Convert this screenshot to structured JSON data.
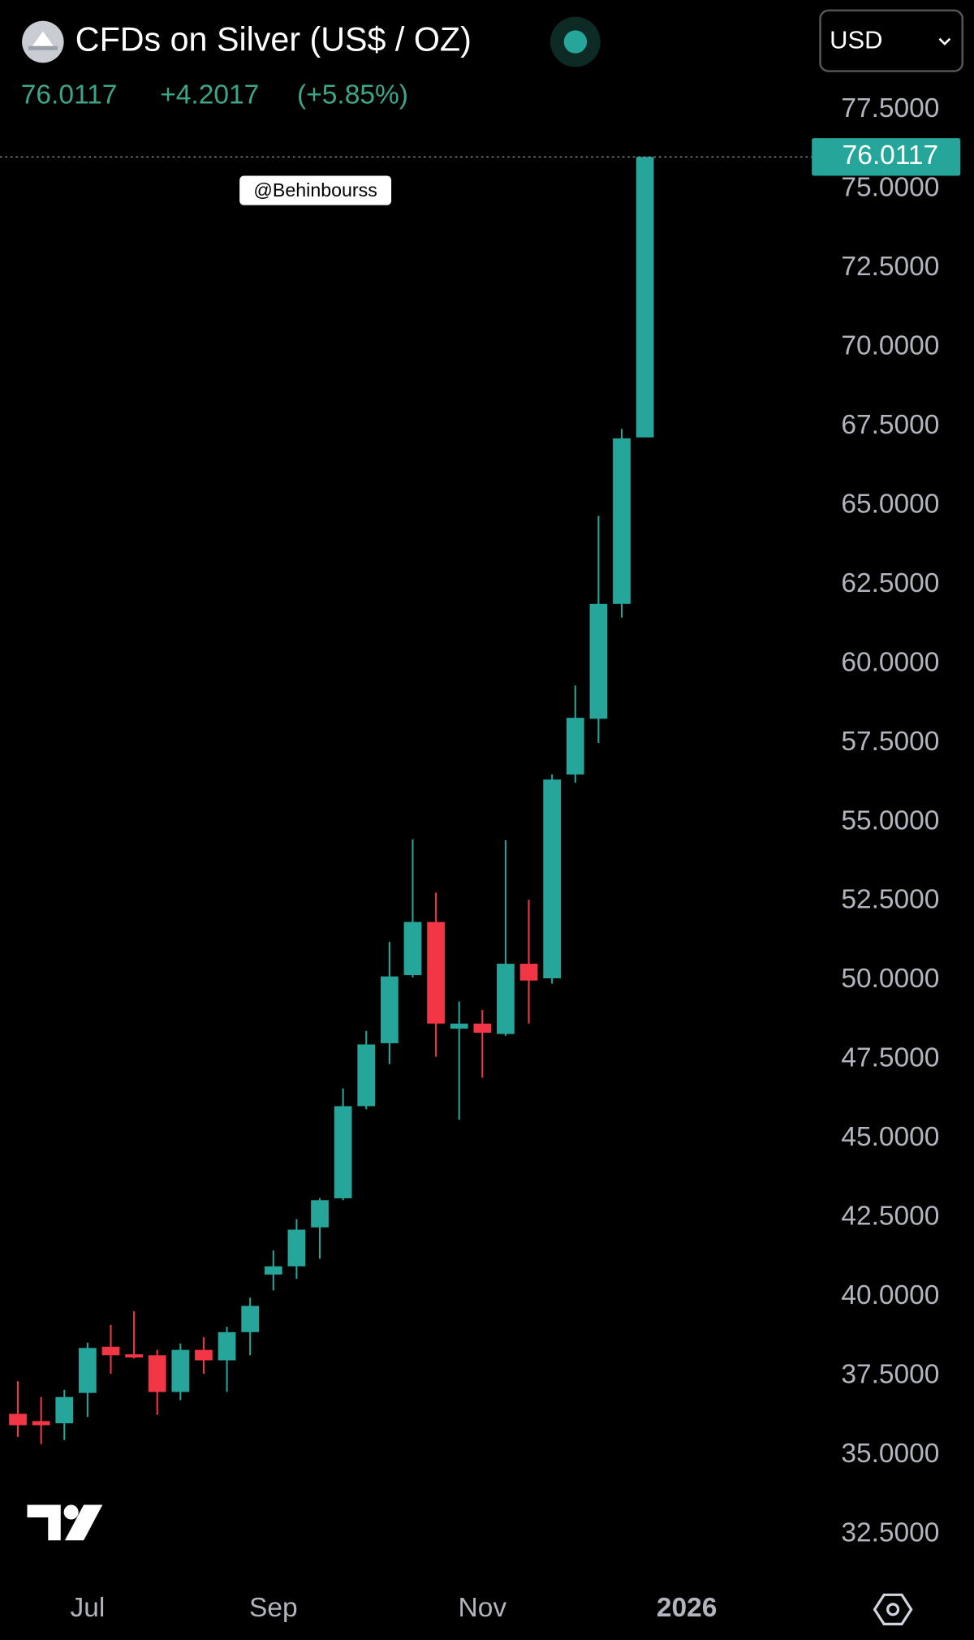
{
  "header": {
    "title": "CFDs on Silver (US$ / OZ)",
    "change": "+4.2017",
    "change_pct": "(+5.85%)",
    "currency": "USD",
    "watermark": "@Behinbourss"
  },
  "chart_data": {
    "type": "candlestick",
    "up_color": "#26a69a",
    "down_color": "#f23645",
    "series": [
      {
        "name": "Silver",
        "open": [
          36.3,
          36.07,
          36.0,
          36.96,
          38.42,
          38.18,
          38.15,
          36.99,
          38.32,
          37.99,
          38.88,
          40.7,
          40.96,
          42.19,
          43.11,
          46.02,
          48.01,
          50.16,
          51.84,
          48.47,
          48.63,
          48.3,
          50.52,
          50.06,
          56.5,
          58.26,
          61.89,
          67.15
        ],
        "high": [
          37.33,
          36.83,
          37.06,
          38.55,
          39.11,
          39.54,
          38.32,
          38.52,
          38.72,
          39.05,
          39.97,
          41.46,
          42.45,
          43.11,
          46.58,
          48.4,
          51.21,
          54.45,
          52.77,
          49.33,
          49.06,
          54.42,
          52.54,
          56.5,
          59.31,
          64.67,
          67.42,
          76.0117
        ],
        "low": [
          35.57,
          35.34,
          35.47,
          36.2,
          37.56,
          38.05,
          36.27,
          36.73,
          37.56,
          36.99,
          38.15,
          40.2,
          40.57,
          41.2,
          43.05,
          45.92,
          47.35,
          50.09,
          47.58,
          45.59,
          46.92,
          48.24,
          48.63,
          49.89,
          56.24,
          57.5,
          61.46,
          67.15
        ],
        "close": [
          35.94,
          35.94,
          36.83,
          38.38,
          38.15,
          38.08,
          36.99,
          38.32,
          37.99,
          38.88,
          39.71,
          40.96,
          42.12,
          43.05,
          46.02,
          47.97,
          50.12,
          51.84,
          48.63,
          48.63,
          48.34,
          50.52,
          49.99,
          56.34,
          58.29,
          61.89,
          67.12,
          76.0117
        ]
      }
    ],
    "xlim": [
      -0.77,
      34.14
    ],
    "xticks": [
      {
        "value": 3,
        "label": "Jul"
      },
      {
        "value": 11,
        "label": "Sep"
      },
      {
        "value": 20,
        "label": "Nov"
      },
      {
        "value": 28.8,
        "label": "2026"
      }
    ],
    "ylim": [
      31.21,
      80.97
    ],
    "yticks": [
      {
        "value": 32.5,
        "label": "32.5000"
      },
      {
        "value": 35,
        "label": "35.0000"
      },
      {
        "value": 37.5,
        "label": "37.5000"
      },
      {
        "value": 40,
        "label": "40.0000"
      },
      {
        "value": 42.5,
        "label": "42.5000"
      },
      {
        "value": 45,
        "label": "45.0000"
      },
      {
        "value": 47.5,
        "label": "47.5000"
      },
      {
        "value": 50,
        "label": "50.0000"
      },
      {
        "value": 52.5,
        "label": "52.5000"
      },
      {
        "value": 55,
        "label": "55.0000"
      },
      {
        "value": 57.5,
        "label": "57.5000"
      },
      {
        "value": 60,
        "label": "60.0000"
      },
      {
        "value": 62.5,
        "label": "62.5000"
      },
      {
        "value": 65,
        "label": "65.0000"
      },
      {
        "value": 67.5,
        "label": "67.5000"
      },
      {
        "value": 70,
        "label": "70.0000"
      },
      {
        "value": 72.5,
        "label": "72.5000"
      },
      {
        "value": 75,
        "label": "75.0000"
      },
      {
        "value": 77.5,
        "label": "77.5000"
      }
    ],
    "grid": false
  }
}
